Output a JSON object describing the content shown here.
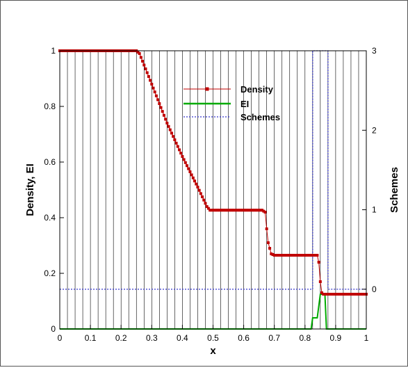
{
  "chart_data": {
    "type": "line",
    "x_axis": {
      "label": "x",
      "range": [
        0,
        1
      ],
      "ticks": [
        0,
        0.1,
        0.2,
        0.3,
        0.4,
        0.5,
        0.6,
        0.7,
        0.8,
        0.9,
        1
      ],
      "tick_labels": [
        "0",
        "0.1",
        "0.2",
        "0.3",
        "0.4",
        "0.5",
        "0.6",
        "0.7",
        "0.8",
        "0.9",
        "1"
      ]
    },
    "y_axis_left": {
      "label": "Density, EI",
      "range": [
        0,
        1
      ],
      "ticks": [
        0,
        0.2,
        0.4,
        0.6,
        0.8,
        1
      ],
      "tick_labels": [
        "0",
        "0.2",
        "0.4",
        "0.6",
        "0.8",
        "1"
      ]
    },
    "y_axis_right": {
      "label": "Schemes",
      "range": [
        -0.5,
        3
      ],
      "ticks": [
        0,
        1,
        2,
        3
      ],
      "tick_labels": [
        "0",
        "1",
        "2",
        "3"
      ]
    },
    "grid": "vertical lines every 0.025 in x",
    "legend": {
      "placement": "upper-center",
      "entries": [
        "Density",
        "EI",
        "Schemes"
      ]
    },
    "series": [
      {
        "name": "Density",
        "axis": "left",
        "color": "#c00000",
        "marker": "square",
        "points": [
          [
            0,
            1
          ],
          [
            0.25,
            1
          ],
          [
            0.26,
            0.99
          ],
          [
            0.3,
            0.88
          ],
          [
            0.35,
            0.74
          ],
          [
            0.4,
            0.62
          ],
          [
            0.45,
            0.51
          ],
          [
            0.48,
            0.44
          ],
          [
            0.49,
            0.427
          ],
          [
            0.66,
            0.427
          ],
          [
            0.67,
            0.42
          ],
          [
            0.675,
            0.36
          ],
          [
            0.68,
            0.31
          ],
          [
            0.69,
            0.27
          ],
          [
            0.7,
            0.265
          ],
          [
            0.84,
            0.265
          ],
          [
            0.845,
            0.24
          ],
          [
            0.85,
            0.17
          ],
          [
            0.855,
            0.13
          ],
          [
            0.86,
            0.125
          ],
          [
            1,
            0.125
          ]
        ]
      },
      {
        "name": "EI",
        "axis": "left",
        "color": "#00aa00",
        "points": [
          [
            0,
            0
          ],
          [
            0.82,
            0
          ],
          [
            0.825,
            0.04
          ],
          [
            0.84,
            0.04
          ],
          [
            0.85,
            0.125
          ],
          [
            0.865,
            0.125
          ],
          [
            0.87,
            0
          ],
          [
            1,
            0
          ]
        ]
      },
      {
        "name": "Schemes",
        "axis": "right",
        "color": "#3333cc",
        "points": [
          [
            0,
            0
          ],
          [
            0.825,
            0
          ],
          [
            0.825,
            3
          ],
          [
            0.875,
            3
          ],
          [
            0.875,
            0
          ],
          [
            1,
            0
          ]
        ]
      }
    ]
  }
}
